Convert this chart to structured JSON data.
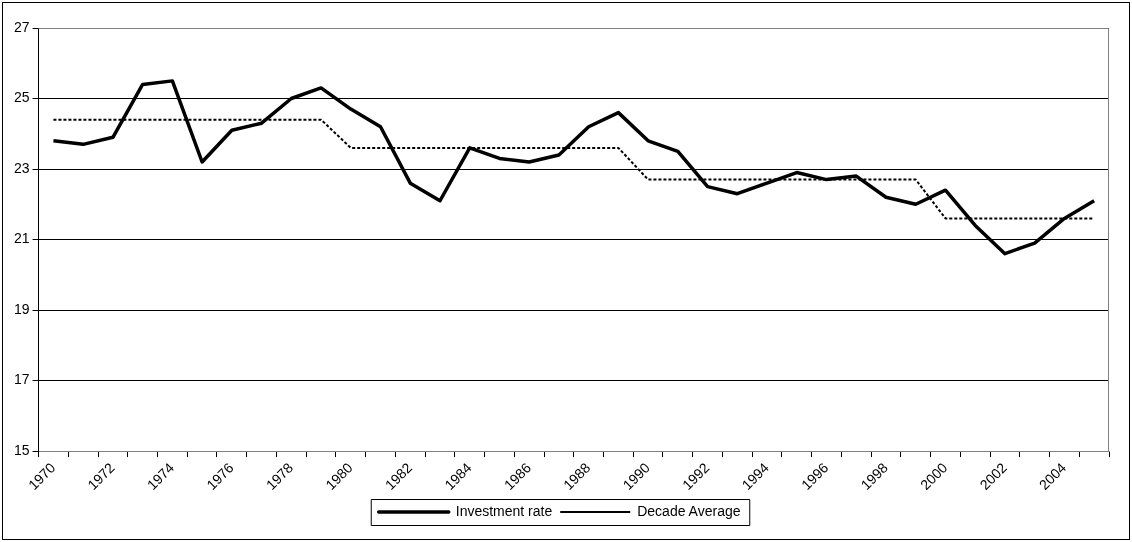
{
  "chart_data": {
    "type": "line",
    "categories": [
      "1970",
      null,
      "1972",
      null,
      "1974",
      null,
      "1976",
      null,
      "1978",
      null,
      "1980",
      null,
      "1982",
      null,
      "1984",
      null,
      "1986",
      null,
      "1988",
      null,
      "1990",
      null,
      "1992",
      null,
      "1994",
      null,
      "1996",
      null,
      "1998",
      null,
      "2000",
      null,
      "2002",
      null,
      "2004",
      null
    ],
    "series": [
      {
        "name": "Investment rate",
        "color": "#000000",
        "line_style": "solid",
        "values": [
          23.8,
          23.7,
          23.9,
          25.4,
          25.5,
          23.2,
          24.1,
          24.3,
          25.0,
          25.3,
          24.7,
          24.2,
          22.6,
          22.1,
          23.6,
          23.3,
          23.2,
          23.4,
          24.2,
          24.6,
          23.8,
          23.5,
          22.5,
          22.3,
          22.6,
          22.9,
          22.7,
          22.8,
          22.2,
          22.0,
          22.4,
          21.4,
          20.6,
          20.9,
          21.6,
          22.1
        ]
      },
      {
        "name": "Decade Average",
        "color": "#000000",
        "line_style": "dotted",
        "values": [
          24.4,
          24.4,
          24.4,
          24.4,
          24.4,
          24.4,
          24.4,
          24.4,
          24.4,
          24.4,
          23.6,
          23.6,
          23.6,
          23.6,
          23.6,
          23.6,
          23.6,
          23.6,
          23.6,
          23.6,
          22.7,
          22.7,
          22.7,
          22.7,
          22.7,
          22.7,
          22.7,
          22.7,
          22.7,
          22.7,
          21.6,
          21.6,
          21.6,
          21.6,
          21.6,
          21.6
        ]
      }
    ],
    "ylim": [
      15,
      27
    ],
    "yticks": [
      15,
      17,
      19,
      21,
      23,
      25,
      27
    ],
    "grid": "y",
    "legend": "bottom",
    "marker": "none"
  }
}
